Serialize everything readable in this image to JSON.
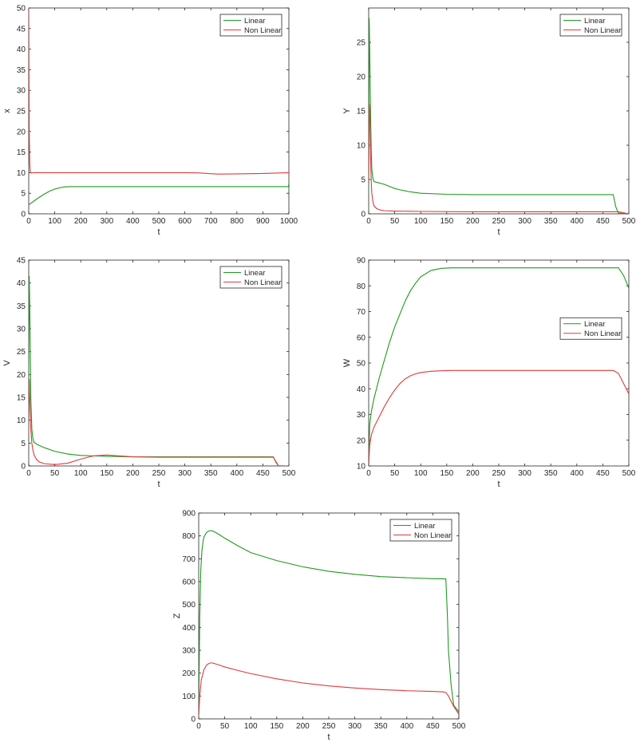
{
  "chart_data": [
    {
      "type": "line",
      "xlabel": "t",
      "ylabel": "x",
      "xlim": [
        0,
        1000
      ],
      "ylim": [
        0,
        50
      ],
      "xticks": [
        0,
        100,
        200,
        300,
        400,
        500,
        600,
        700,
        800,
        900,
        1000
      ],
      "yticks": [
        0,
        5,
        10,
        15,
        20,
        25,
        30,
        35,
        40,
        45,
        50
      ],
      "legend_position": "top-right",
      "series": [
        {
          "name": "Linear",
          "color": "#1f9a1f",
          "x": [
            0,
            20,
            40,
            60,
            80,
            100,
            120,
            140,
            160,
            200,
            300,
            400,
            500,
            600,
            700,
            800,
            900,
            998,
            1000
          ],
          "y": [
            2.2,
            3.1,
            4.0,
            4.8,
            5.5,
            6.0,
            6.35,
            6.55,
            6.6,
            6.6,
            6.6,
            6.6,
            6.6,
            6.6,
            6.6,
            6.6,
            6.6,
            6.6,
            7.3
          ]
        },
        {
          "name": "Non Linear",
          "color": "#e03a3a",
          "x": [
            0,
            1,
            2,
            4,
            6,
            10,
            20,
            50,
            100,
            200,
            300,
            400,
            500,
            600,
            650,
            700,
            730,
            800,
            900,
            1000
          ],
          "y": [
            50,
            35,
            20,
            12,
            10.2,
            9.9,
            10.0,
            10.0,
            10.0,
            10.0,
            10.0,
            10.0,
            10.0,
            10.0,
            9.95,
            9.75,
            9.65,
            9.7,
            9.8,
            10.0
          ]
        }
      ]
    },
    {
      "type": "line",
      "xlabel": "t",
      "ylabel": "Y",
      "xlim": [
        0,
        500
      ],
      "ylim": [
        0,
        30
      ],
      "xticks": [
        0,
        50,
        100,
        150,
        200,
        250,
        300,
        350,
        400,
        450,
        500
      ],
      "yticks": [
        0,
        5,
        10,
        15,
        20,
        25
      ],
      "legend_position": "top-right",
      "series": [
        {
          "name": "Linear",
          "color": "#1f9a1f",
          "x": [
            0,
            1,
            2,
            3,
            4,
            5,
            6,
            8,
            10,
            15,
            20,
            30,
            40,
            50,
            60,
            80,
            100,
            150,
            200,
            300,
            400,
            470,
            475,
            480,
            500
          ],
          "y": [
            3.0,
            28.5,
            24,
            18,
            13,
            9,
            6.5,
            5.2,
            4.7,
            4.6,
            4.5,
            4.3,
            4.0,
            3.7,
            3.5,
            3.2,
            3.0,
            2.85,
            2.8,
            2.8,
            2.8,
            2.8,
            1.0,
            0.1,
            0.0
          ]
        },
        {
          "name": "Non Linear",
          "color": "#e03a3a",
          "x": [
            0,
            1,
            2,
            3,
            4,
            5,
            6,
            8,
            10,
            15,
            20,
            30,
            50,
            100,
            200,
            300,
            400,
            480,
            490,
            500
          ],
          "y": [
            5.0,
            16,
            15,
            11,
            7,
            4.5,
            3,
            1.8,
            1.2,
            0.8,
            0.6,
            0.45,
            0.4,
            0.35,
            0.3,
            0.3,
            0.3,
            0.3,
            0.15,
            0.0
          ]
        }
      ]
    },
    {
      "type": "line",
      "xlabel": "t",
      "ylabel": "V",
      "xlim": [
        0,
        500
      ],
      "ylim": [
        0,
        45
      ],
      "xticks": [
        0,
        50,
        100,
        150,
        200,
        250,
        300,
        350,
        400,
        450,
        500
      ],
      "yticks": [
        0,
        5,
        10,
        15,
        20,
        25,
        30,
        35,
        40,
        45
      ],
      "legend_position": "top-right",
      "series": [
        {
          "name": "Linear",
          "color": "#1f9a1f",
          "x": [
            0,
            1,
            2,
            3,
            4,
            6,
            8,
            10,
            15,
            20,
            30,
            50,
            75,
            100,
            150,
            200,
            300,
            400,
            470,
            475,
            480,
            500
          ],
          "y": [
            20,
            41.5,
            35,
            25,
            15,
            8,
            6,
            5.2,
            4.8,
            4.5,
            4.0,
            3.2,
            2.6,
            2.3,
            2.1,
            2.0,
            2.0,
            2.0,
            2.0,
            0.8,
            0.0,
            0.0
          ]
        },
        {
          "name": "Non Linear",
          "color": "#e03a3a",
          "x": [
            0,
            1,
            2,
            3,
            4,
            6,
            8,
            10,
            15,
            20,
            30,
            50,
            75,
            100,
            125,
            150,
            175,
            200,
            250,
            300,
            400,
            470,
            480,
            500
          ],
          "y": [
            10,
            19,
            15,
            11,
            8,
            5,
            3.5,
            2.5,
            1.4,
            0.9,
            0.5,
            0.3,
            0.6,
            1.5,
            2.2,
            2.4,
            2.2,
            2.0,
            1.9,
            1.9,
            1.9,
            1.9,
            0.05,
            0.0
          ]
        }
      ]
    },
    {
      "type": "line",
      "xlabel": "t",
      "ylabel": "W",
      "xlim": [
        0,
        500
      ],
      "ylim": [
        10,
        90
      ],
      "xticks": [
        0,
        50,
        100,
        150,
        200,
        250,
        300,
        350,
        400,
        450,
        500
      ],
      "yticks": [
        10,
        20,
        30,
        40,
        50,
        60,
        70,
        80,
        90
      ],
      "legend_position": "right",
      "series": [
        {
          "name": "Linear",
          "color": "#1f9a1f",
          "x": [
            0,
            2,
            5,
            10,
            20,
            30,
            40,
            50,
            60,
            70,
            80,
            90,
            100,
            120,
            140,
            160,
            200,
            300,
            400,
            480,
            490,
            500
          ],
          "y": [
            10,
            26,
            31,
            36,
            44,
            51,
            58,
            64,
            69,
            74,
            78,
            81,
            83.5,
            86,
            86.8,
            87,
            87,
            87,
            87,
            87,
            84,
            79
          ]
        },
        {
          "name": "Non Linear",
          "color": "#e03a3a",
          "x": [
            0,
            2,
            5,
            10,
            20,
            30,
            40,
            50,
            60,
            70,
            80,
            90,
            100,
            120,
            140,
            160,
            200,
            300,
            400,
            470,
            480,
            490,
            500
          ],
          "y": [
            10,
            18,
            22,
            25,
            29,
            33,
            36.5,
            39.5,
            42,
            43.8,
            45,
            45.8,
            46.3,
            46.8,
            47,
            47.1,
            47.1,
            47.1,
            47.1,
            47.1,
            46,
            42,
            38
          ]
        }
      ]
    },
    {
      "type": "line",
      "xlabel": "t",
      "ylabel": "Z",
      "xlim": [
        0,
        500
      ],
      "ylim": [
        0,
        900
      ],
      "xticks": [
        0,
        50,
        100,
        150,
        200,
        250,
        300,
        350,
        400,
        450,
        500
      ],
      "yticks": [
        0,
        100,
        200,
        300,
        400,
        500,
        600,
        700,
        800,
        900
      ],
      "legend_position": "top-right",
      "series": [
        {
          "name": "Linear",
          "color": "#1f9a1f",
          "x": [
            0,
            2,
            4,
            6,
            8,
            10,
            15,
            20,
            25,
            30,
            40,
            50,
            75,
            100,
            150,
            200,
            250,
            300,
            350,
            400,
            450,
            475,
            478,
            480,
            485,
            490,
            500
          ],
          "y": [
            20,
            450,
            650,
            730,
            770,
            795,
            815,
            822,
            823,
            818,
            805,
            790,
            757,
            727,
            692,
            665,
            645,
            632,
            622,
            617,
            613,
            612,
            450,
            300,
            150,
            60,
            30
          ]
        },
        {
          "name": "Non Linear",
          "color": "#e03a3a",
          "x": [
            0,
            2,
            5,
            10,
            15,
            20,
            25,
            30,
            40,
            50,
            75,
            100,
            150,
            200,
            250,
            300,
            350,
            400,
            450,
            470,
            475,
            480,
            490,
            500
          ],
          "y": [
            10,
            100,
            170,
            215,
            235,
            243,
            245,
            242,
            235,
            227,
            212,
            198,
            175,
            157,
            144,
            135,
            128,
            123,
            120,
            118,
            115,
            100,
            55,
            20
          ]
        }
      ]
    }
  ]
}
